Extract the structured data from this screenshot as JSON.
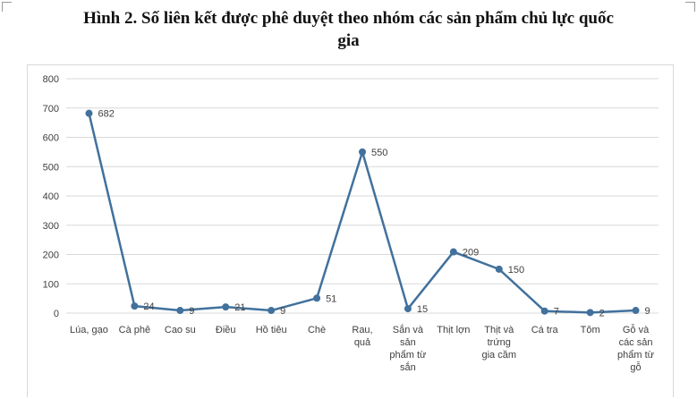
{
  "page": {
    "title_line1": "Hình 2. Số liên kết được phê duyệt theo nhóm các sản phẩm chủ lực quốc",
    "title_line2": "gia"
  },
  "colors": {
    "line": "#41719c",
    "grid": "#d9d9d9",
    "text": "#404040"
  },
  "chart_data": {
    "type": "line",
    "title": "Hình 2. Số liên kết được phê duyệt theo nhóm các sản phẩm chủ lực quốc gia",
    "xlabel": "",
    "ylabel": "",
    "ylim": [
      0,
      800
    ],
    "yticks": [
      0,
      100,
      200,
      300,
      400,
      500,
      600,
      700,
      800
    ],
    "grid": true,
    "legend": "none",
    "categories": [
      "Lúa, gạo",
      "Cà phê",
      "Cao su",
      "Điều",
      "Hồ tiêu",
      "Chè",
      "Rau, quả",
      "Sản và sản phẩm từ sắn",
      "Thịt lợn",
      "Thịt và trứng gia cầm",
      "Cá tra",
      "Tôm",
      "Gỗ và các sản phẩm từ gỗ"
    ],
    "category_lines": [
      [
        "Lúa, gạo"
      ],
      [
        "Cà phê"
      ],
      [
        "Cao su"
      ],
      [
        "Điều"
      ],
      [
        "Hồ tiêu"
      ],
      [
        "Chè"
      ],
      [
        "Rau,",
        "quả"
      ],
      [
        "Sắn và",
        "sản",
        "phẩm từ",
        "sắn"
      ],
      [
        "Thịt lợn"
      ],
      [
        "Thịt và",
        "trứng",
        "gia cầm"
      ],
      [
        "Cá tra"
      ],
      [
        "Tôm"
      ],
      [
        "Gỗ và",
        "các sản",
        "phẩm từ",
        "gỗ"
      ]
    ],
    "series": [
      {
        "values": [
          682,
          24,
          9,
          21,
          9,
          51,
          550,
          15,
          209,
          150,
          7,
          2,
          9
        ]
      }
    ]
  }
}
